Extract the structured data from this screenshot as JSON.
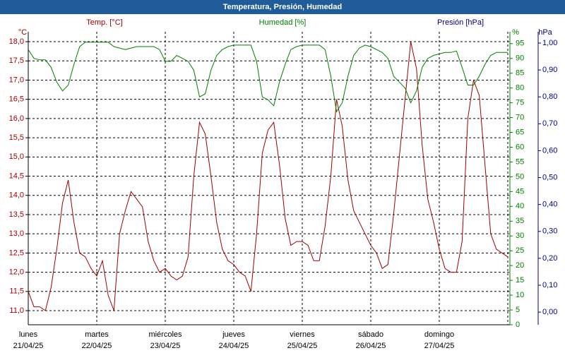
{
  "chart_data": {
    "type": "line",
    "title": "Temperatura, Presión, Humedad",
    "days": [
      {
        "day": "lunes",
        "date": "21/04/25"
      },
      {
        "day": "martes",
        "date": "22/04/25"
      },
      {
        "day": "miércoles",
        "date": "23/04/25"
      },
      {
        "day": "jueves",
        "date": "24/04/25"
      },
      {
        "day": "viernes",
        "date": "25/04/25"
      },
      {
        "day": "sábado",
        "date": "26/04/25"
      },
      {
        "day": "domingo",
        "date": "27/04/25"
      }
    ],
    "y_unit": "°C",
    "y2_unit": "%",
    "y3_unit": "hPa",
    "y3_title": "Presión [hPa]",
    "y3_color": "#000080",
    "grid": true,
    "ylim": [
      10.633,
      18.258
    ],
    "yticks": [
      {
        "value": 11.0,
        "label": "11,0"
      },
      {
        "value": 11.5,
        "label": "11,5"
      },
      {
        "value": 12.0,
        "label": "12,0"
      },
      {
        "value": 12.5,
        "label": "12,5"
      },
      {
        "value": 13.0,
        "label": "13,0"
      },
      {
        "value": 13.5,
        "label": "13,5"
      },
      {
        "value": 14.0,
        "label": "14,0"
      },
      {
        "value": 14.5,
        "label": "14,5"
      },
      {
        "value": 15.0,
        "label": "15,0"
      },
      {
        "value": 15.5,
        "label": "15,5"
      },
      {
        "value": 16.0,
        "label": "16,0"
      },
      {
        "value": 16.5,
        "label": "16,5"
      },
      {
        "value": 17.0,
        "label": "17,0"
      },
      {
        "value": 17.5,
        "label": "17,5"
      },
      {
        "value": 18.0,
        "label": "18,0"
      }
    ],
    "y2lim": [
      0,
      99
    ],
    "y2ticks": [
      0,
      5,
      10,
      15,
      20,
      25,
      30,
      35,
      40,
      45,
      50,
      55,
      60,
      65,
      70,
      75,
      80,
      85,
      90,
      95
    ],
    "y3lim": [
      -0.047,
      1.042
    ],
    "y3ticks": [
      {
        "value": 0.0,
        "label": "0,00"
      },
      {
        "value": 0.1,
        "label": "0,10"
      },
      {
        "value": 0.2,
        "label": "0,20"
      },
      {
        "value": 0.3,
        "label": "0,30"
      },
      {
        "value": 0.4,
        "label": "0,40"
      },
      {
        "value": 0.5,
        "label": "0,50"
      },
      {
        "value": 0.6,
        "label": "0,60"
      },
      {
        "value": 0.7,
        "label": "0,70"
      },
      {
        "value": 0.8,
        "label": "0,80"
      },
      {
        "value": 0.9,
        "label": "0,90"
      },
      {
        "value": 1.0,
        "label": "1,00"
      }
    ],
    "series": [
      {
        "name": "Temp. [°C]",
        "color": "#a00000",
        "axis": "y",
        "values": [
          11.5,
          11.1,
          11.1,
          11.0,
          11.6,
          12.6,
          13.8,
          14.4,
          13.3,
          12.5,
          12.4,
          12.1,
          11.9,
          12.3,
          11.4,
          11.0,
          13.0,
          13.6,
          14.1,
          13.9,
          13.7,
          12.8,
          12.3,
          12.0,
          12.1,
          11.9,
          11.8,
          11.9,
          12.4,
          14.5,
          15.9,
          15.6,
          14.5,
          13.3,
          12.6,
          12.3,
          12.2,
          12.0,
          11.9,
          11.5,
          13.0,
          15.1,
          15.7,
          15.9,
          14.8,
          13.4,
          12.7,
          12.8,
          12.8,
          12.7,
          12.3,
          12.3,
          13.2,
          14.5,
          16.5,
          15.8,
          14.4,
          13.6,
          13.3,
          13.0,
          12.7,
          12.5,
          12.1,
          12.2,
          13.5,
          15.0,
          16.5,
          18.0,
          17.3,
          15.3,
          13.9,
          13.3,
          12.6,
          12.1,
          12.0,
          12.0,
          12.8,
          16.0,
          17.0,
          16.6,
          14.8,
          13.0,
          12.6,
          12.5,
          12.4
        ]
      },
      {
        "name": "Humedad [%]",
        "color": "#008000",
        "axis": "y2",
        "values": [
          93,
          90,
          89.5,
          89.5,
          87,
          82,
          79,
          81,
          88,
          94,
          95.5,
          95.5,
          95.5,
          95.5,
          95.5,
          94,
          93.5,
          93,
          93.5,
          94,
          94,
          94,
          94,
          93,
          89,
          89,
          91,
          90,
          89,
          86,
          77,
          78,
          86,
          91,
          93,
          94,
          94.5,
          94.5,
          94.5,
          94.5,
          89,
          77,
          76,
          74,
          82,
          88,
          93,
          94,
          94.5,
          94.5,
          94.5,
          94.5,
          93,
          84,
          72,
          75,
          84,
          91,
          93.5,
          94.5,
          94,
          93,
          92,
          90,
          84,
          82,
          80,
          75,
          79,
          87,
          90,
          91,
          91.5,
          92,
          92,
          92.5,
          87,
          81,
          81,
          84,
          88,
          91,
          92,
          92,
          92
        ]
      }
    ]
  }
}
